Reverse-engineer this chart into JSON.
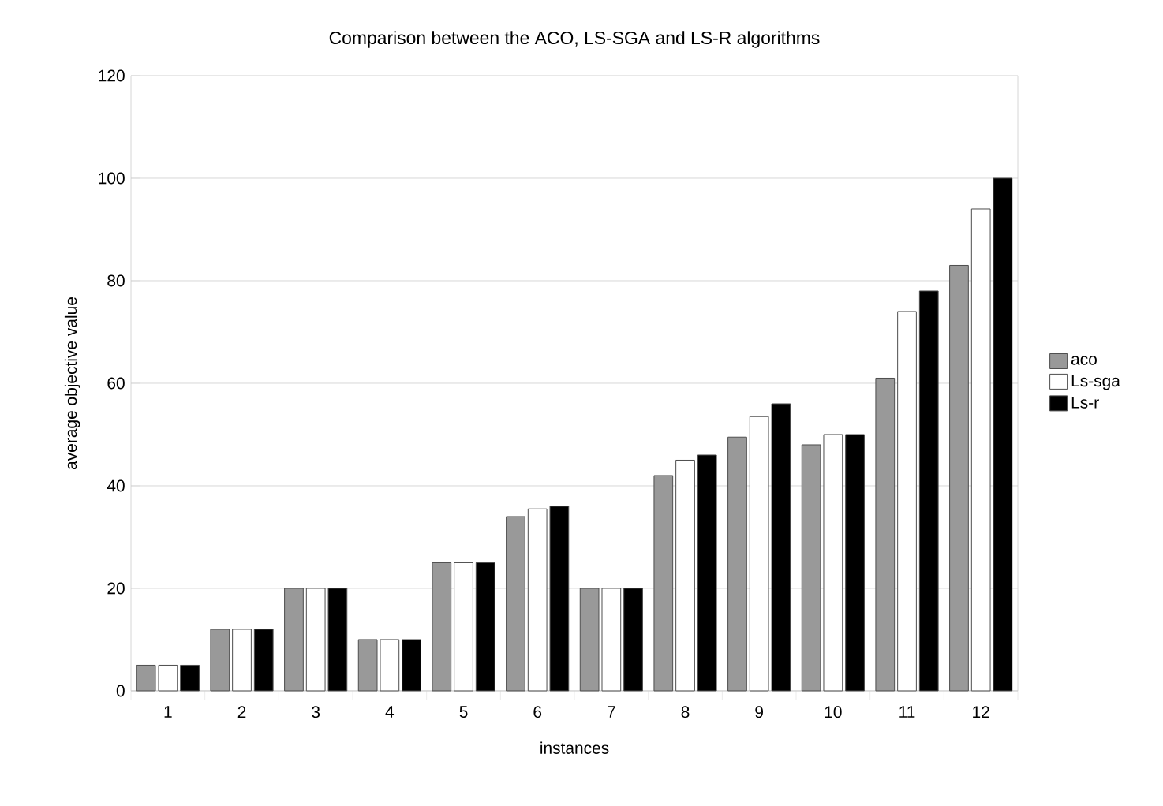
{
  "chart_data": {
    "type": "bar",
    "title": "Comparison between the ACO, LS-SGA and LS-R algorithms",
    "xlabel": "instances",
    "ylabel": "average objective value",
    "categories": [
      "1",
      "2",
      "3",
      "4",
      "5",
      "6",
      "7",
      "8",
      "9",
      "10",
      "11",
      "12"
    ],
    "series": [
      {
        "name": "aco",
        "color": "#999999",
        "values": [
          5,
          12,
          20,
          10,
          25,
          34,
          20,
          42,
          49.5,
          48,
          61,
          83
        ]
      },
      {
        "name": "Ls-sga",
        "color": "#ffffff",
        "values": [
          5,
          12,
          20,
          10,
          25,
          35.5,
          20,
          45,
          53.5,
          50,
          74,
          94
        ]
      },
      {
        "name": "Ls-r",
        "color": "#000000",
        "values": [
          5,
          12,
          20,
          10,
          25,
          36,
          20,
          46,
          56,
          50,
          78,
          100
        ]
      }
    ],
    "ylim": [
      0,
      120
    ],
    "yticks": [
      0,
      20,
      40,
      60,
      80,
      100,
      120
    ],
    "grid": "y",
    "legend": "right"
  }
}
